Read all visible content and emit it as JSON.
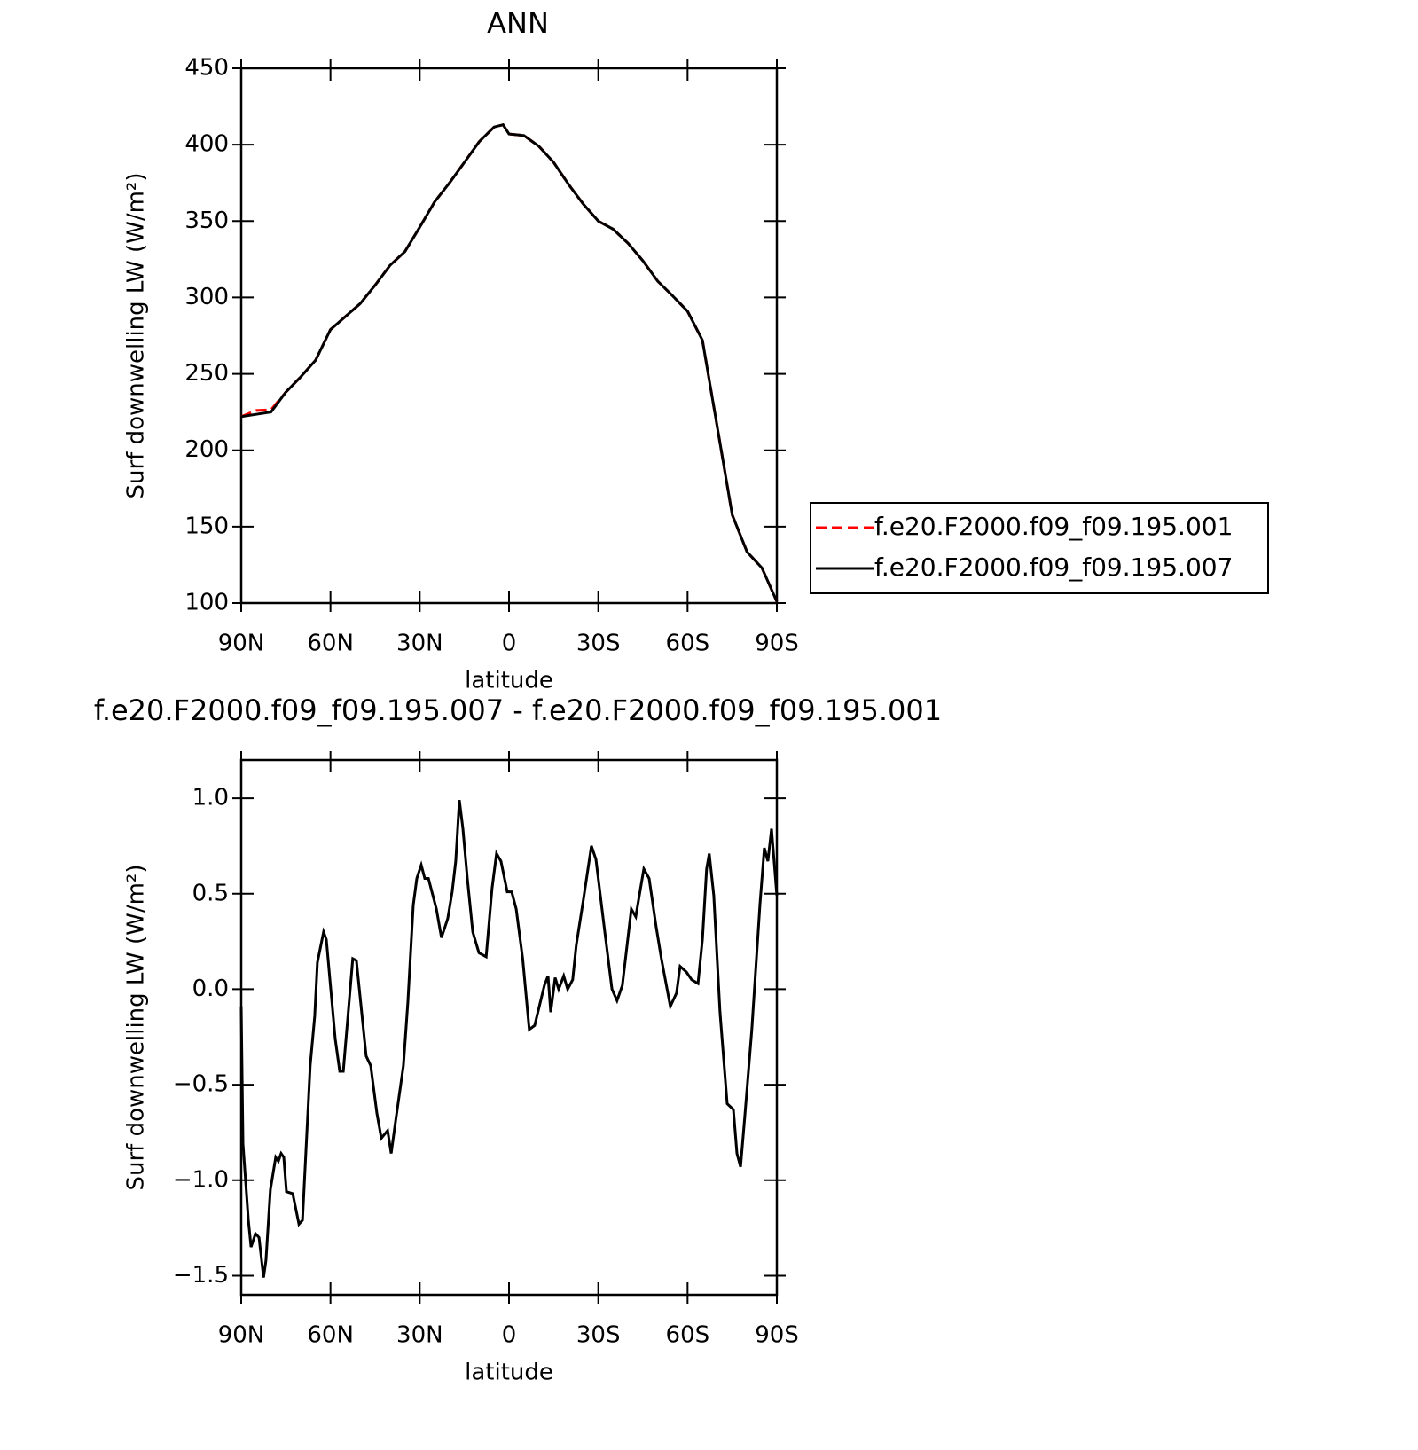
{
  "chart_data": [
    {
      "type": "line",
      "title": "ANN",
      "xlabel": "latitude",
      "ylabel": "Surf downwelling LW (W/m²)",
      "xlim": [
        90,
        -90
      ],
      "ylim": [
        100,
        450
      ],
      "xticks": [
        {
          "value": 90,
          "label": "90N"
        },
        {
          "value": 60,
          "label": "60N"
        },
        {
          "value": 30,
          "label": "30N"
        },
        0,
        {
          "value": -30,
          "label": "30S"
        },
        {
          "value": -60,
          "label": "60S"
        },
        {
          "value": -90,
          "label": "90S"
        }
      ],
      "yticks": [
        100,
        150,
        200,
        250,
        300,
        350,
        400,
        450
      ],
      "legend": "right",
      "x": [
        90,
        85,
        80,
        75,
        70,
        65,
        60,
        55,
        50,
        45,
        40,
        35,
        30,
        25,
        20,
        15,
        10,
        5,
        2,
        0,
        -5,
        -10,
        -15,
        -20,
        -25,
        -30,
        -35,
        -40,
        -45,
        -50,
        -55,
        -60,
        -65,
        -70,
        -75,
        -80,
        -85,
        -90
      ],
      "series": [
        {
          "name": "f.e20.F2000.f09_f09.195.001",
          "color": "#ff0000",
          "dashed": true,
          "values": [
            222,
            226,
            226.5,
            238,
            248,
            259,
            279,
            287.5,
            296,
            308,
            321,
            330,
            346,
            362.6,
            375,
            388.5,
            402,
            411.6,
            413,
            407,
            406,
            399,
            388.5,
            374,
            361,
            350,
            344.7,
            335.5,
            324,
            310.6,
            301,
            291,
            272,
            215,
            157.7,
            133.5,
            123,
            101
          ]
        },
        {
          "name": "f.e20.F2000.f09_f09.195.007",
          "color": "#000000",
          "dashed": false,
          "values": [
            222,
            223.5,
            225,
            238,
            248,
            259,
            279,
            287.5,
            296,
            308,
            321,
            330,
            346,
            362.6,
            375,
            388.5,
            402,
            411.6,
            413,
            407,
            406,
            399,
            388.5,
            374,
            361,
            350,
            344.7,
            335.5,
            324,
            310.6,
            301,
            291,
            272,
            215,
            157.7,
            133.5,
            123,
            101
          ]
        }
      ]
    },
    {
      "type": "line",
      "title": "f.e20.F2000.f09_f09.195.007 - f.e20.F2000.f09_f09.195.001",
      "xlabel": "latitude",
      "ylabel": "Surf downwelling LW (W/m²)",
      "xlim": [
        90,
        -90
      ],
      "ylim": [
        -1.6,
        1.2
      ],
      "xticks": [
        {
          "value": 90,
          "label": "90N"
        },
        {
          "value": 60,
          "label": "60N"
        },
        {
          "value": 30,
          "label": "30N"
        },
        0,
        {
          "value": -30,
          "label": "30S"
        },
        {
          "value": -60,
          "label": "60S"
        },
        {
          "value": -90,
          "label": "90S"
        }
      ],
      "yticks": [
        {
          "value": -1.5,
          "label": "−1.5"
        },
        {
          "value": -1,
          "label": "−1.0"
        },
        {
          "value": -0.5,
          "label": "−0.5"
        },
        {
          "value": 0,
          "label": "0.0"
        },
        {
          "value": 0.5,
          "label": "0.5"
        },
        {
          "value": 1,
          "label": "1.0"
        }
      ],
      "x": [
        90,
        89.4,
        87.6,
        86.7,
        85.2,
        84,
        82.5,
        81.7,
        80.2,
        78.4,
        77.5,
        76.6,
        75.7,
        74.8,
        72.7,
        70.6,
        69.4,
        66.8,
        65.3,
        64.4,
        62.3,
        61.4,
        58.4,
        56.9,
        55.7,
        52.5,
        51.3,
        48,
        46.5,
        44.4,
        42.9,
        40.8,
        39.6,
        38.2,
        35.5,
        34,
        32.2,
        31,
        29.5,
        28.3,
        27.1,
        24.4,
        22.7,
        20.6,
        19.1,
        17.9,
        16.7,
        15.5,
        14,
        12.2,
        10.1,
        7.7,
        5.7,
        4.2,
        2.7,
        0.6,
        -0.9,
        -2.4,
        -4.6,
        -6.8,
        -8.6,
        -11.9,
        -13.1,
        -14,
        -15.5,
        -16.7,
        -18.4,
        -19.7,
        -21.4,
        -22.6,
        -25,
        -27.7,
        -29.2,
        -32.2,
        -34.6,
        -36.3,
        -38.1,
        -41.1,
        -42.6,
        -45.3,
        -47.1,
        -49.4,
        -51.2,
        -54.2,
        -56.3,
        -57.5,
        -59.6,
        -61.4,
        -63.5,
        -65,
        -66.4,
        -67.3,
        -68.8,
        -70.9,
        -73.3,
        -75.4,
        -76.6,
        -77.8,
        -79.2,
        -81.6,
        -84.3,
        -85.8,
        -87,
        -88.2,
        -90
      ],
      "series": [
        {
          "color": "#000000",
          "dashed": false,
          "values": [
            -0.09,
            -0.81,
            -1.21,
            -1.35,
            -1.28,
            -1.3,
            -1.51,
            -1.42,
            -1.05,
            -0.88,
            -0.9,
            -0.86,
            -0.88,
            -1.06,
            -1.07,
            -1.23,
            -1.21,
            -0.4,
            -0.14,
            0.14,
            0.3,
            0.26,
            -0.26,
            -0.43,
            -0.43,
            0.16,
            0.15,
            -0.35,
            -0.4,
            -0.65,
            -0.78,
            -0.74,
            -0.86,
            -0.7,
            -0.4,
            -0.07,
            0.44,
            0.58,
            0.65,
            0.58,
            0.58,
            0.42,
            0.27,
            0.37,
            0.51,
            0.67,
            0.99,
            0.84,
            0.58,
            0.3,
            0.19,
            0.17,
            0.53,
            0.71,
            0.67,
            0.51,
            0.51,
            0.42,
            0.16,
            -0.21,
            -0.19,
            0.02,
            0.07,
            -0.12,
            0.06,
            0,
            0.07,
            0,
            0.05,
            0.23,
            0.47,
            0.75,
            0.68,
            0.3,
            0,
            -0.06,
            0.02,
            0.42,
            0.38,
            0.63,
            0.58,
            0.33,
            0.16,
            -0.09,
            -0.02,
            0.12,
            0.09,
            0.05,
            0.03,
            0.26,
            0.63,
            0.71,
            0.49,
            -0.12,
            -0.6,
            -0.63,
            -0.86,
            -0.93,
            -0.67,
            -0.21,
            0.44,
            0.74,
            0.67,
            0.84,
            0.49
          ]
        }
      ]
    }
  ]
}
